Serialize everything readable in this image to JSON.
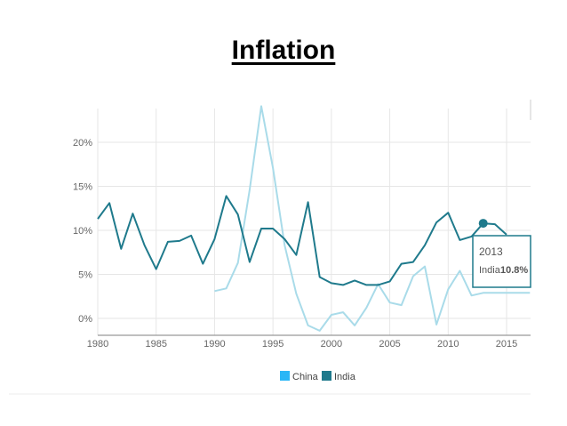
{
  "title": "Inflation",
  "chart_data": {
    "type": "line",
    "title": "Inflation",
    "xlabel": "",
    "ylabel": "",
    "xlim": [
      1980,
      2017
    ],
    "ylim": [
      -1.5,
      24
    ],
    "x_ticks": [
      "1980",
      "1985",
      "1990",
      "1995",
      "2000",
      "2005",
      "2010",
      "2015"
    ],
    "y_ticks": [
      "0%",
      "5%",
      "10%",
      "15%",
      "20%"
    ],
    "grid": true,
    "legend": "bottom",
    "series": [
      {
        "name": "China",
        "color": "#a9dbe9",
        "x": [
          1990,
          1991,
          1992,
          1993,
          1994,
          1995,
          1996,
          1997,
          1998,
          1999,
          2000,
          2001,
          2002,
          2003,
          2004,
          2005,
          2006,
          2007,
          2008,
          2009,
          2010,
          2011,
          2012,
          2013,
          2014,
          2015,
          2016,
          2017
        ],
        "y": [
          3.1,
          3.4,
          6.3,
          14.6,
          24.1,
          17.1,
          8.3,
          2.8,
          -0.8,
          -1.4,
          0.4,
          0.7,
          -0.8,
          1.2,
          3.9,
          1.8,
          1.5,
          4.8,
          5.9,
          -0.7,
          3.3,
          5.4,
          2.6,
          2.9,
          2.9,
          2.9,
          2.9,
          2.9
        ]
      },
      {
        "name": "India",
        "color": "#1f7a8c",
        "x": [
          1980,
          1981,
          1982,
          1983,
          1984,
          1985,
          1986,
          1987,
          1988,
          1989,
          1990,
          1991,
          1992,
          1993,
          1994,
          1995,
          1996,
          1997,
          1998,
          1999,
          2000,
          2001,
          2002,
          2003,
          2004,
          2005,
          2006,
          2007,
          2008,
          2009,
          2010,
          2011,
          2012,
          2013,
          2014,
          2015
        ],
        "y": [
          11.3,
          13.1,
          7.9,
          11.9,
          8.3,
          5.6,
          8.7,
          8.8,
          9.4,
          6.2,
          9.0,
          13.9,
          11.8,
          6.4,
          10.2,
          10.2,
          9.0,
          7.2,
          13.2,
          4.7,
          4.0,
          3.8,
          4.3,
          3.8,
          3.8,
          4.2,
          6.2,
          6.4,
          8.3,
          10.9,
          12.0,
          8.9,
          9.3,
          10.8,
          10.7,
          9.5
        ]
      }
    ],
    "tooltip": {
      "year": "2013",
      "series": "India",
      "value": "10.8%"
    }
  }
}
